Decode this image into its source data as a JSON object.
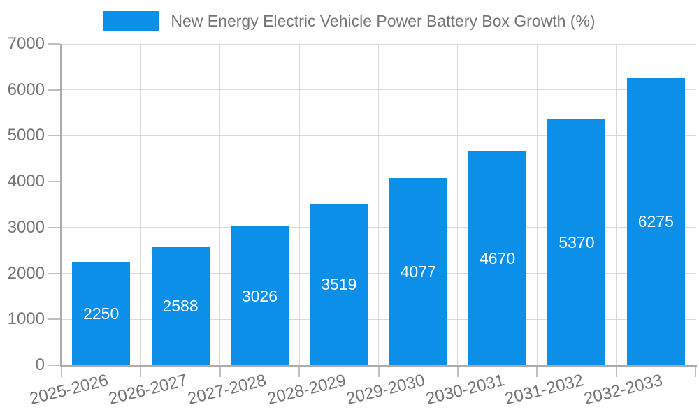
{
  "legend": {
    "label": "New Energy Electric Vehicle Power Battery Box Growth (%)",
    "swatch_icon": "blue-rect-swatch"
  },
  "chart_data": {
    "type": "bar",
    "title": "New Energy Electric Vehicle Power Battery Box Growth (%)",
    "categories": [
      "2025-2026",
      "2026-2027",
      "2027-2028",
      "2028-2029",
      "2029-2030",
      "2030-2031",
      "2031-2032",
      "2032-2033"
    ],
    "values": [
      2250,
      2588,
      3026,
      3519,
      4077,
      4670,
      5370,
      6275
    ],
    "xlabel": "",
    "ylabel": "",
    "ylim": [
      0,
      7000
    ],
    "ytick_step": 1000,
    "yticks": [
      0,
      1000,
      2000,
      3000,
      4000,
      5000,
      6000,
      7000
    ],
    "grid": true,
    "legend_position": "top",
    "bar_color": "#0c8fe9",
    "bar_label_color": "#ffffff",
    "axis_color": "#acacac",
    "grid_color": "#d9d9d9",
    "tick_text_color": "#757575"
  }
}
